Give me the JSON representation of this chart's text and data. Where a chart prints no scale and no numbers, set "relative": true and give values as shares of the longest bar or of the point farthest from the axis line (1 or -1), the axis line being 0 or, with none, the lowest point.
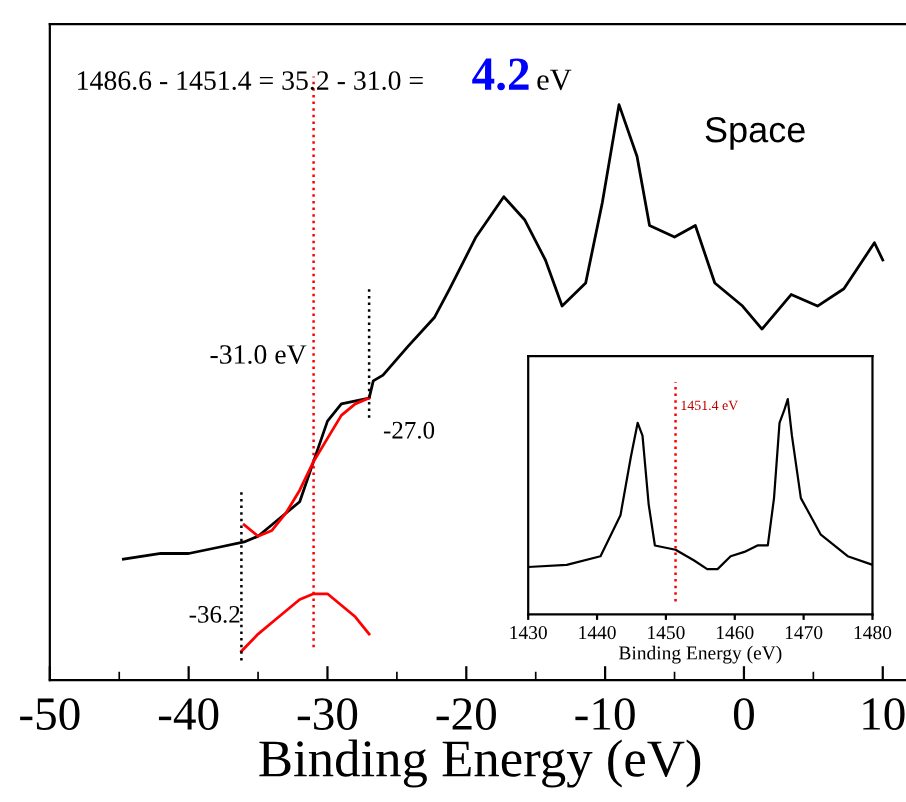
{
  "chart_data": [
    {
      "type": "line",
      "xlabel": "Binding Energy (eV)",
      "relative": true,
      "xlim": [
        -50,
        12
      ],
      "xticks": [
        -50,
        {
          "value": -45,
          "label": null
        },
        -40,
        {
          "value": -35,
          "label": null
        },
        -30,
        {
          "value": -25,
          "label": null
        },
        -20,
        {
          "value": -15,
          "label": null
        },
        -10,
        {
          "value": -5,
          "label": null
        },
        0,
        {
          "value": 5,
          "label": null
        },
        10
      ],
      "grid": false,
      "legend": false,
      "tick_labels": "x",
      "series": [
        {
          "color": "#000000",
          "x": [
            -44.7,
            -42,
            -40,
            -38,
            -36,
            -35,
            -34,
            -33,
            -32,
            -31,
            -30,
            -29,
            -27,
            -26.7,
            -26,
            -24.2,
            -22.3,
            -21.2,
            -19.3,
            -17.3,
            -15.8,
            -14.3,
            -13.1,
            -11.4,
            -10.2,
            -9.0,
            -7.7,
            -6.8,
            -5.0,
            -3.5,
            -2.1,
            -0.1,
            1.3,
            3.4,
            5.3,
            7.2,
            9.4,
            10.0
          ],
          "values": [
            0.21,
            0.22,
            0.22,
            0.23,
            0.24,
            0.25,
            0.27,
            0.29,
            0.31,
            0.38,
            0.45,
            0.48,
            0.49,
            0.52,
            0.53,
            0.58,
            0.63,
            0.68,
            0.77,
            0.84,
            0.8,
            0.73,
            0.65,
            0.69,
            0.83,
            1.0,
            0.91,
            0.79,
            0.77,
            0.79,
            0.69,
            0.65,
            0.61,
            0.67,
            0.65,
            0.68,
            0.76,
            0.73
          ]
        },
        {
          "color": "#ff0000",
          "x": [
            -36,
            -35,
            -34,
            -33,
            -32,
            -31,
            -30,
            -29,
            -28,
            -27
          ],
          "values": [
            0.27,
            0.25,
            0.26,
            0.29,
            0.33,
            0.38,
            0.42,
            0.46,
            0.48,
            0.49
          ]
        },
        {
          "color": "#ff0000",
          "x": [
            -36.2,
            -35,
            -34,
            -33,
            -32,
            -31,
            -30,
            -29,
            -28,
            -27
          ],
          "values": [
            0.05,
            0.08,
            0.1,
            0.12,
            0.14,
            0.15,
            0.15,
            0.13,
            0.11,
            0.08
          ]
        }
      ],
      "ref_lines": [
        {
          "axis": "x",
          "value": -36.2,
          "label": "-36.2",
          "color": "#000000",
          "line_style": "dotted"
        },
        {
          "axis": "x",
          "value": -31.0,
          "label": "-31.0 eV",
          "color": "#ff0000",
          "line_style": "dotted"
        },
        {
          "axis": "x",
          "value": -27.0,
          "label": "-27.0",
          "color": "#000000",
          "line_style": "dotted"
        }
      ],
      "annotations": [
        "1486.6 - 1451.4 = 35.2 - 31.0 =",
        "4.2",
        "eV",
        "Space"
      ]
    },
    {
      "type": "line",
      "xlabel": "Binding Energy (eV)",
      "relative": true,
      "xlim": [
        1430,
        1480
      ],
      "xticks": [
        1430,
        1440,
        1450,
        1460,
        1470,
        1480
      ],
      "grid": false,
      "legend": false,
      "tick_labels": "x",
      "series": [
        {
          "color": "#000000",
          "x": [
            1430,
            1435.6,
            1440.5,
            1443.4,
            1444.9,
            1445.9,
            1446.6,
            1447.5,
            1448.4,
            1451.4,
            1454.1,
            1456.0,
            1457.5,
            1459.4,
            1461.4,
            1463.3,
            1464.8,
            1465.7,
            1466.5,
            1467.2,
            1467.7,
            1468.3,
            1469.6,
            1472.5,
            1476.4,
            1480
          ],
          "values": [
            0.22,
            0.23,
            0.27,
            0.46,
            0.73,
            0.89,
            0.83,
            0.51,
            0.32,
            0.3,
            0.25,
            0.21,
            0.21,
            0.27,
            0.29,
            0.32,
            0.32,
            0.54,
            0.89,
            0.95,
            1.0,
            0.83,
            0.54,
            0.37,
            0.27,
            0.23
          ]
        }
      ],
      "ref_lines": [
        {
          "axis": "x",
          "value": 1451.4,
          "label": "1451.4 eV",
          "color": "#ff0000",
          "line_style": "dotted"
        }
      ]
    }
  ]
}
